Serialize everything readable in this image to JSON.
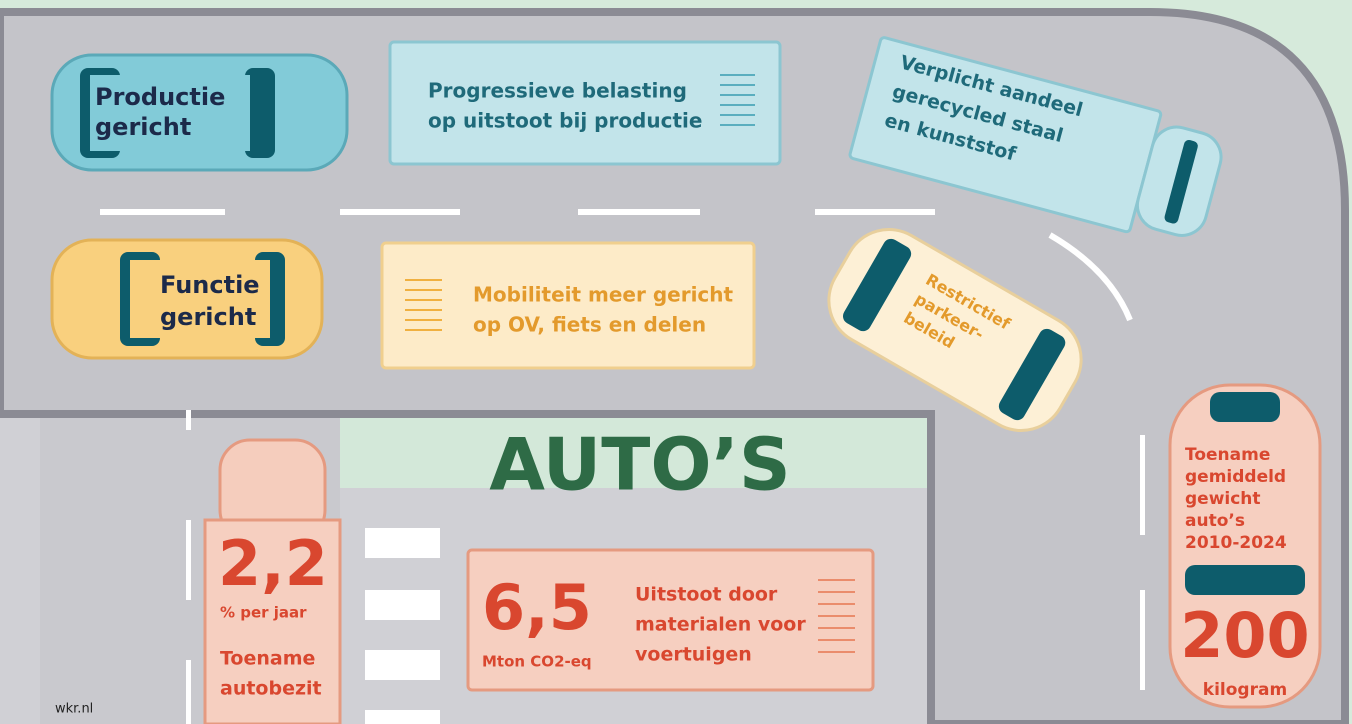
{
  "cards": [
    {
      "lines": [
        "Productie",
        "gericht"
      ]
    },
    {
      "lines": [
        "Progressieve belasting",
        "op uitstoot bij productie"
      ]
    },
    {
      "lines": [
        "Verplicht aandeel",
        "gerecycled staal",
        "en kunststof"
      ]
    },
    {
      "lines": [
        "Functie",
        "gericht"
      ]
    },
    {
      "lines": [
        "Mobiliteit meer gericht",
        "op OV, fiets en delen"
      ]
    },
    {
      "lines": [
        "Restrictief",
        "parkeer-",
        "beleid"
      ]
    }
  ],
  "title": "AUTO’S",
  "stats": [
    {
      "figure": "2,2",
      "unit": "% per jaar",
      "lines": [
        "Toename",
        "autobezit"
      ]
    },
    {
      "figure": "6,5",
      "unit": "Mton CO2-eq",
      "lines": [
        "Uitstoot door",
        "materialen voor",
        "voertuigen"
      ]
    },
    {
      "figure": "200",
      "unit": "kilogram",
      "lines": [
        "Toename",
        "gemiddeld",
        "gewicht",
        "auto’s",
        "2010-2024"
      ]
    }
  ],
  "source": "wkr.nl"
}
